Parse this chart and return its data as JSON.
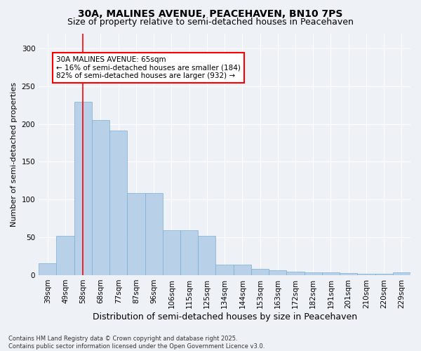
{
  "title": "30A, MALINES AVENUE, PEACEHAVEN, BN10 7PS",
  "subtitle": "Size of property relative to semi-detached houses in Peacehaven",
  "xlabel": "Distribution of semi-detached houses by size in Peacehaven",
  "ylabel": "Number of semi-detached properties",
  "categories": [
    "39sqm",
    "49sqm",
    "58sqm",
    "68sqm",
    "77sqm",
    "87sqm",
    "96sqm",
    "106sqm",
    "115sqm",
    "125sqm",
    "134sqm",
    "144sqm",
    "153sqm",
    "163sqm",
    "172sqm",
    "182sqm",
    "191sqm",
    "201sqm",
    "210sqm",
    "220sqm",
    "229sqm"
  ],
  "values": [
    16,
    52,
    229,
    205,
    191,
    109,
    109,
    59,
    59,
    52,
    14,
    14,
    8,
    6,
    5,
    4,
    4,
    3,
    2,
    2,
    4
  ],
  "bar_color": "#b8d0e8",
  "bar_edge_color": "#7aafd4",
  "vline_x": 2.0,
  "vline_color": "red",
  "annotation_text": "30A MALINES AVENUE: 65sqm\n← 16% of semi-detached houses are smaller (184)\n82% of semi-detached houses are larger (932) →",
  "annotation_box_color": "white",
  "annotation_box_edge": "red",
  "ylim": [
    0,
    320
  ],
  "yticks": [
    0,
    50,
    100,
    150,
    200,
    250,
    300
  ],
  "footnote": "Contains HM Land Registry data © Crown copyright and database right 2025.\nContains public sector information licensed under the Open Government Licence v3.0.",
  "background_color": "#eef2f7",
  "title_fontsize": 10,
  "subtitle_fontsize": 9,
  "xlabel_fontsize": 9,
  "ylabel_fontsize": 8,
  "tick_fontsize": 7.5,
  "annot_fontsize": 7.5,
  "footnote_fontsize": 6
}
